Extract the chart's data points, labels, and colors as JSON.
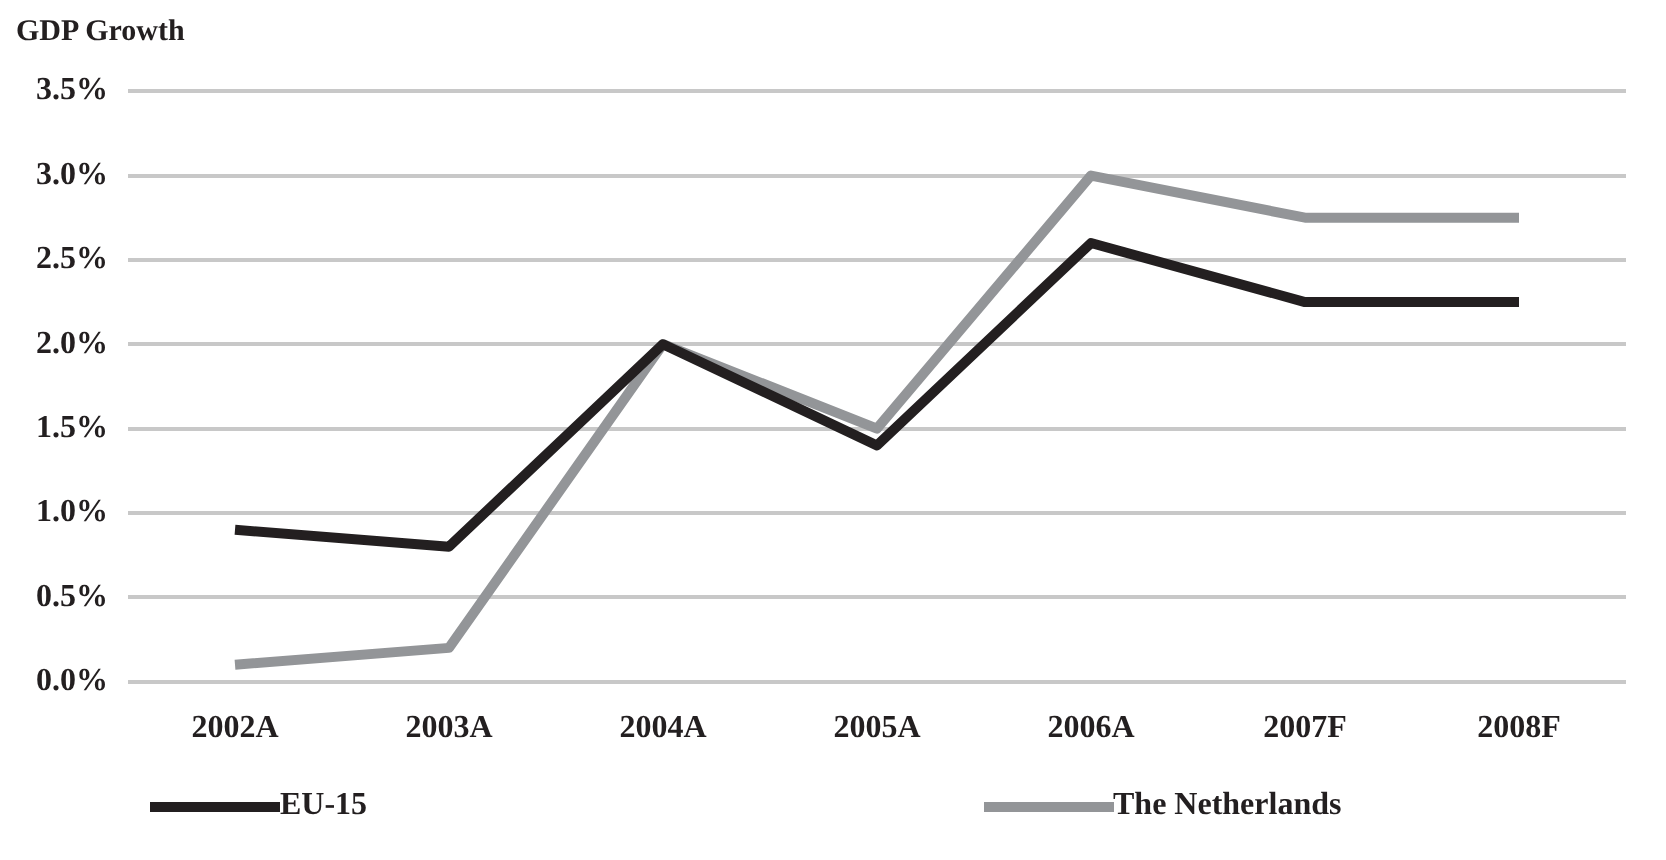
{
  "chart_data": {
    "type": "line",
    "title": "GDP Growth",
    "categories": [
      "2002A",
      "2003A",
      "2004A",
      "2005A",
      "2006A",
      "2007F",
      "2008F"
    ],
    "series": [
      {
        "name": "EU-15",
        "color": "#231f20",
        "values": [
          0.9,
          0.8,
          2.0,
          1.4,
          2.6,
          2.25,
          2.25
        ]
      },
      {
        "name": "The Netherlands",
        "color": "#939598",
        "values": [
          0.1,
          0.2,
          2.0,
          1.5,
          3.0,
          2.75,
          2.75
        ]
      }
    ],
    "ylim": [
      0,
      3.5
    ],
    "yticks": [
      {
        "value": 0,
        "label": "0.0%"
      },
      {
        "value": 0.5,
        "label": "0.5%"
      },
      {
        "value": 1,
        "label": "1.0%"
      },
      {
        "value": 1.5,
        "label": "1.5%"
      },
      {
        "value": 2,
        "label": "2.0%"
      },
      {
        "value": 2.5,
        "label": "2.5%"
      },
      {
        "value": 3,
        "label": "3.0%"
      },
      {
        "value": 3.5,
        "label": "3.5%"
      }
    ],
    "grid": "y",
    "legend": "bottom",
    "marker": "none",
    "line_style": "solid"
  }
}
